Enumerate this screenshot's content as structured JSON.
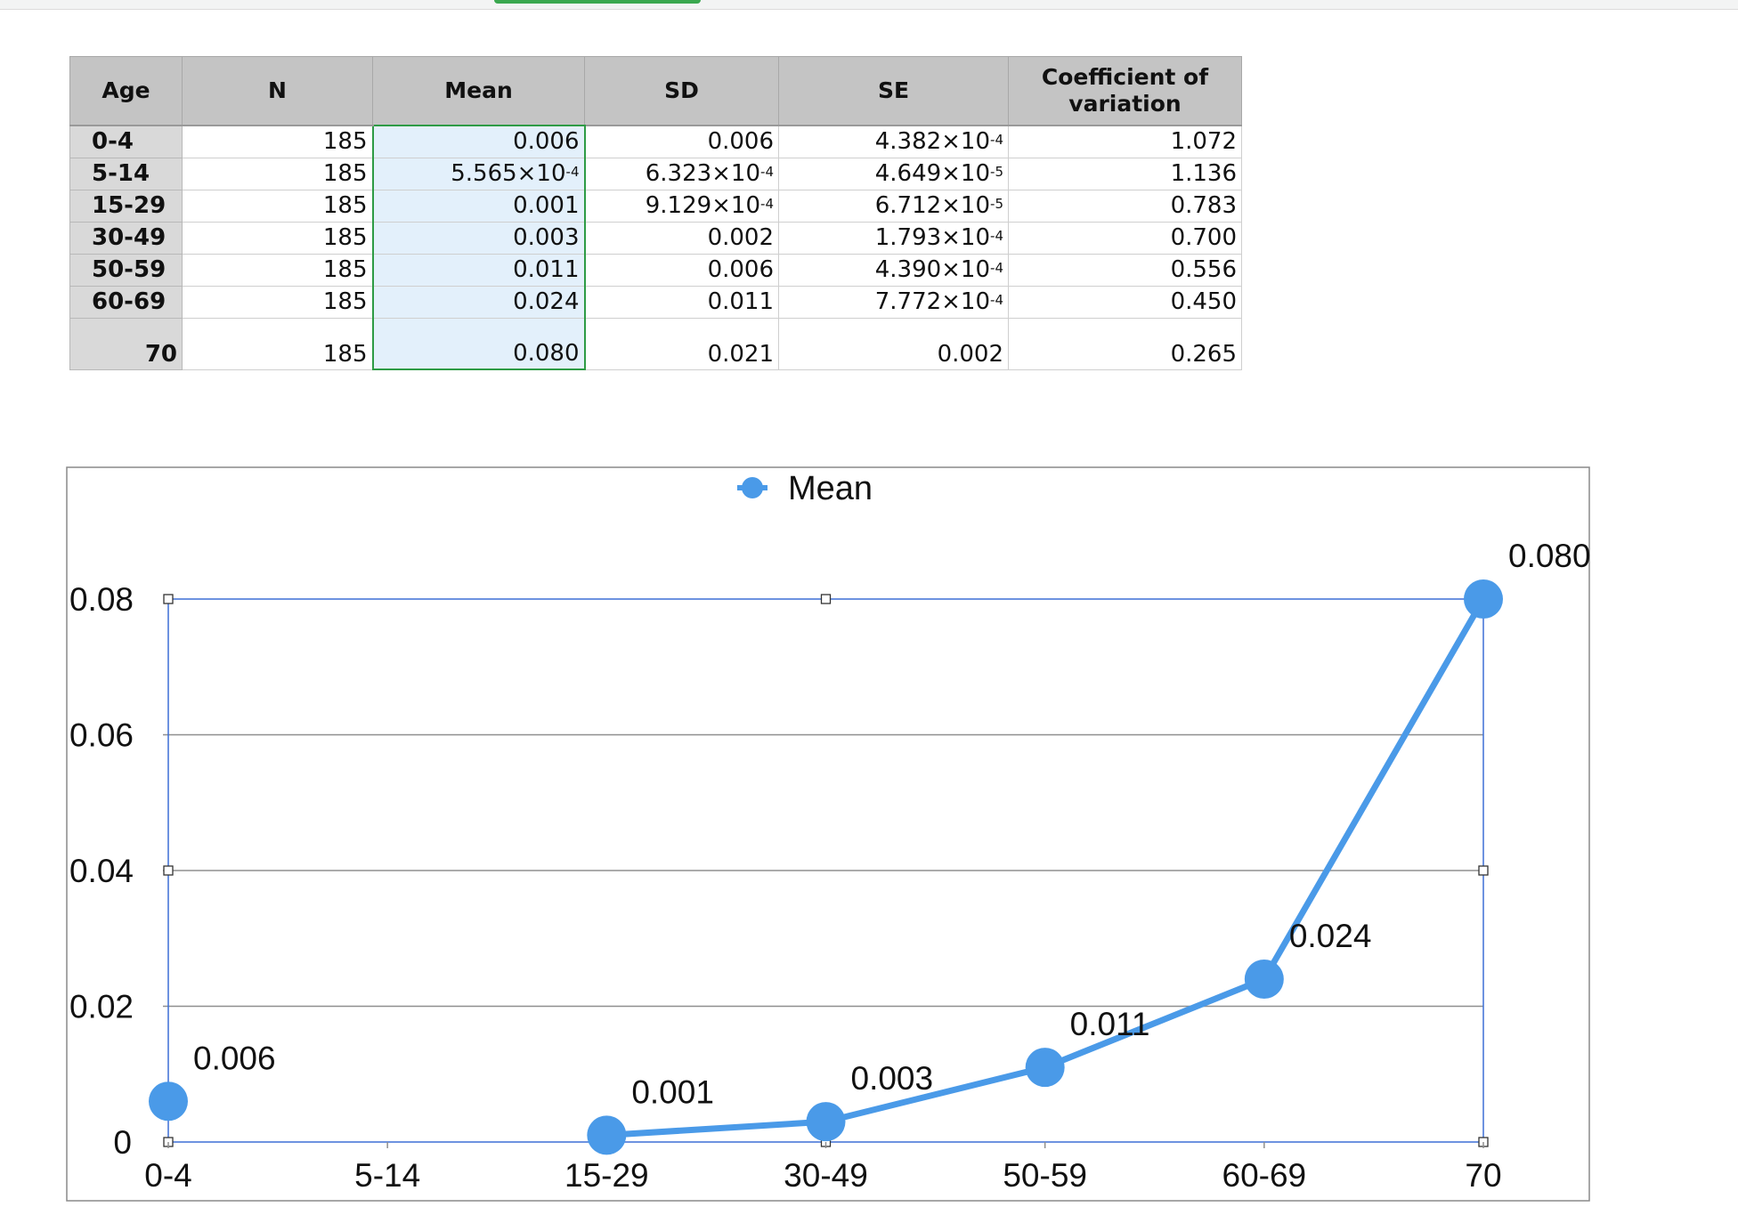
{
  "table": {
    "headers": {
      "age": "Age",
      "n": "N",
      "mean": "Mean",
      "sd": "SD",
      "se": "SE",
      "cv_line1": "Coefficient of",
      "cv_line2": "variation"
    },
    "rows": [
      {
        "age": "0-4",
        "n": "185",
        "mean": {
          "base": "0.006"
        },
        "sd": {
          "base": "0.006"
        },
        "se": {
          "base": "4.382×10",
          "exp": "-4"
        },
        "cv": "1.072"
      },
      {
        "age": "5-14",
        "n": "185",
        "mean": {
          "base": "5.565×10",
          "exp": "-4"
        },
        "sd": {
          "base": "6.323×10",
          "exp": "-4"
        },
        "se": {
          "base": "4.649×10",
          "exp": "-5"
        },
        "cv": "1.136"
      },
      {
        "age": "15-29",
        "n": "185",
        "mean": {
          "base": "0.001"
        },
        "sd": {
          "base": "9.129×10",
          "exp": "-4"
        },
        "se": {
          "base": "6.712×10",
          "exp": "-5"
        },
        "cv": "0.783"
      },
      {
        "age": "30-49",
        "n": "185",
        "mean": {
          "base": "0.003"
        },
        "sd": {
          "base": "0.002"
        },
        "se": {
          "base": "1.793×10",
          "exp": "-4"
        },
        "cv": "0.700"
      },
      {
        "age": "50-59",
        "n": "185",
        "mean": {
          "base": "0.011"
        },
        "sd": {
          "base": "0.006"
        },
        "se": {
          "base": "4.390×10",
          "exp": "-4"
        },
        "cv": "0.556"
      },
      {
        "age": "60-69",
        "n": "185",
        "mean": {
          "base": "0.024"
        },
        "sd": {
          "base": "0.011"
        },
        "se": {
          "base": "7.772×10",
          "exp": "-4"
        },
        "cv": "0.450"
      },
      {
        "age": "70",
        "n": "185",
        "mean": {
          "base": "0.080"
        },
        "sd": {
          "base": "0.021"
        },
        "se": {
          "base": "0.002"
        },
        "cv": "0.265"
      }
    ]
  },
  "chart_data": {
    "type": "line",
    "title": "",
    "xlabel": "",
    "ylabel": "",
    "categories": [
      "0-4",
      "5-14",
      "15-29",
      "30-49",
      "50-59",
      "60-69",
      "70"
    ],
    "series": [
      {
        "name": "Mean",
        "values": [
          0.006,
          null,
          0.001,
          0.003,
          0.011,
          0.024,
          0.08
        ],
        "labels": [
          "0.006",
          null,
          "0.001",
          "0.003",
          "0.011",
          "0.024",
          "0.080"
        ],
        "color": "#4a9ae8"
      }
    ],
    "ylim": [
      0,
      0.08
    ],
    "yticks": [
      0,
      0.02,
      0.04,
      0.06,
      0.08
    ],
    "ytick_labels": [
      "0",
      "0.02",
      "0.04",
      "0.06",
      "0.08"
    ],
    "grid": true,
    "legend_position": "top-center",
    "plot_area_selected": true
  },
  "colors": {
    "series": "#4a9ae8",
    "selection": "#3d6fd6",
    "selected_column_fill": "#e3f0fb",
    "selected_column_border": "#2e9b45",
    "header_fill": "#c4c4c4"
  }
}
